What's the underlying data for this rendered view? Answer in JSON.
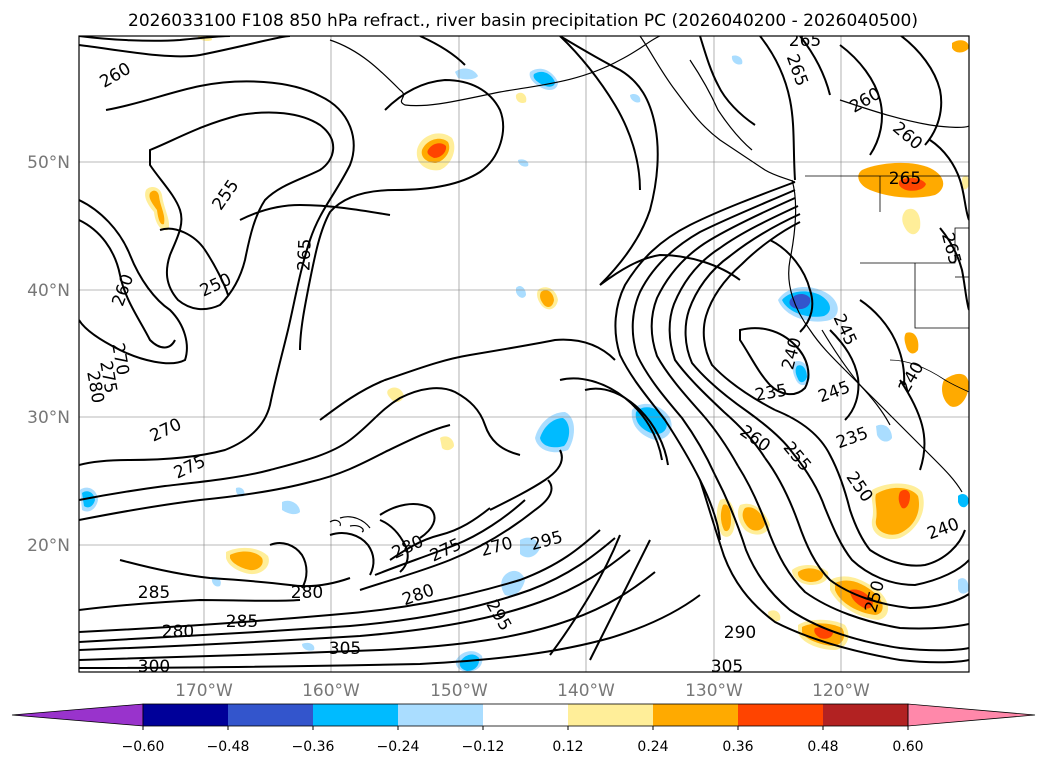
{
  "chart_data": {
    "type": "contour",
    "title": "2026033100 F108 850 hPa refract., river basin precipitation PC (2026040200 - 2026040500)",
    "x_ticks": [
      "170°W",
      "160°W",
      "150°W",
      "140°W",
      "130°W",
      "120°W"
    ],
    "y_ticks": [
      "50°N",
      "40°N",
      "30°N",
      "20°N"
    ],
    "grid": true,
    "colorbar": {
      "orientation": "horizontal",
      "extend": "both",
      "levels": [
        "−0.60",
        "−0.48",
        "−0.36",
        "−0.24",
        "−0.12",
        "0.12",
        "0.24",
        "0.36",
        "0.48",
        "0.60"
      ],
      "colors": [
        "#9933cc",
        "#000099",
        "#3355cc",
        "#00bbff",
        "#aaddff",
        "#ffffff",
        "#ffee99",
        "#ffaa00",
        "#ff4400",
        "#b22222",
        "#ff88aa"
      ]
    },
    "contour_labels": [
      "260",
      "255",
      "250",
      "260",
      "270",
      "275",
      "280",
      "265",
      "270",
      "275",
      "285",
      "285",
      "280",
      "280",
      "300",
      "280",
      "275",
      "270",
      "295",
      "280",
      "295",
      "305",
      "265",
      "265",
      "260",
      "260",
      "265",
      "265",
      "245",
      "240",
      "235",
      "245",
      "240",
      "235",
      "260",
      "255",
      "250",
      "240",
      "250",
      "290",
      "305"
    ]
  }
}
